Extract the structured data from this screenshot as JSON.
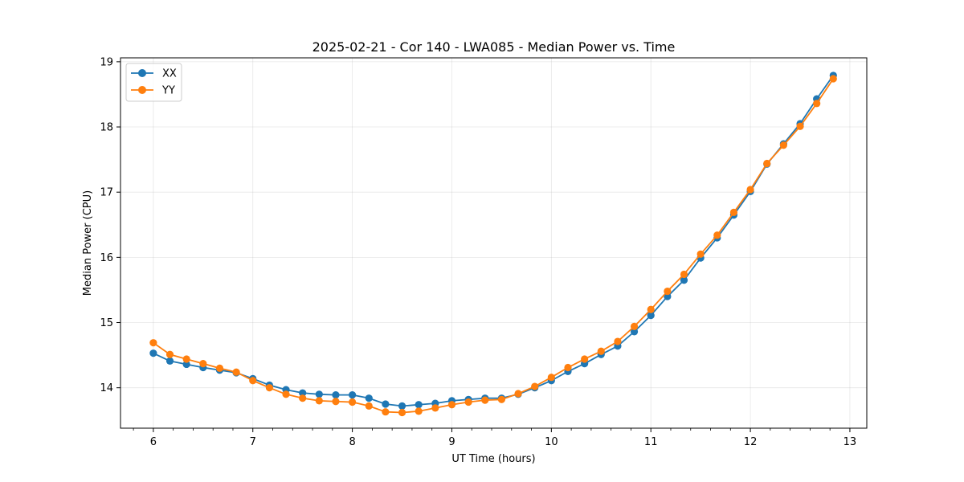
{
  "chart_data": {
    "type": "line",
    "title": "2025-02-21 - Cor 140 - LWA085 - Median Power vs. Time",
    "xlabel": "UT Time (hours)",
    "ylabel": "Median Power (CPU)",
    "xlim": [
      5.67,
      13.17
    ],
    "ylim": [
      13.38,
      19.06
    ],
    "xticks": [
      6,
      7,
      8,
      9,
      10,
      11,
      12,
      13
    ],
    "yticks": [
      14,
      15,
      16,
      17,
      18,
      19
    ],
    "grid": true,
    "legend_position": "upper-left",
    "x": [
      6.0,
      6.1667,
      6.3333,
      6.5,
      6.6667,
      6.8333,
      7.0,
      7.1667,
      7.3333,
      7.5,
      7.6667,
      7.8333,
      8.0,
      8.1667,
      8.3333,
      8.5,
      8.6667,
      8.8333,
      9.0,
      9.1667,
      9.3333,
      9.5,
      9.6667,
      9.8333,
      10.0,
      10.1667,
      10.3333,
      10.5,
      10.6667,
      10.8333,
      11.0,
      11.1667,
      11.3333,
      11.5,
      11.6667,
      11.8333,
      12.0,
      12.1667,
      12.3333,
      12.5,
      12.6667,
      12.8333
    ],
    "series": [
      {
        "name": "XX",
        "color": "#1f77b4",
        "values": [
          14.53,
          14.41,
          14.36,
          14.31,
          14.27,
          14.23,
          14.14,
          14.04,
          13.97,
          13.92,
          13.9,
          13.89,
          13.89,
          13.84,
          13.75,
          13.72,
          13.74,
          13.76,
          13.8,
          13.82,
          13.84,
          13.84,
          13.9,
          14.0,
          14.11,
          14.25,
          14.37,
          14.51,
          14.64,
          14.86,
          15.11,
          15.4,
          15.65,
          15.99,
          16.3,
          16.65,
          17.01,
          17.43,
          17.74,
          18.05,
          18.43,
          18.79
        ]
      },
      {
        "name": "YY",
        "color": "#ff7f0e",
        "values": [
          14.69,
          14.51,
          14.44,
          14.37,
          14.3,
          14.24,
          14.11,
          14.0,
          13.9,
          13.84,
          13.8,
          13.79,
          13.78,
          13.72,
          13.63,
          13.62,
          13.64,
          13.69,
          13.74,
          13.78,
          13.81,
          13.82,
          13.91,
          14.02,
          14.16,
          14.31,
          14.44,
          14.56,
          14.71,
          14.94,
          15.2,
          15.48,
          15.74,
          16.05,
          16.34,
          16.69,
          17.04,
          17.44,
          17.72,
          18.01,
          18.36,
          18.74
        ]
      }
    ]
  }
}
